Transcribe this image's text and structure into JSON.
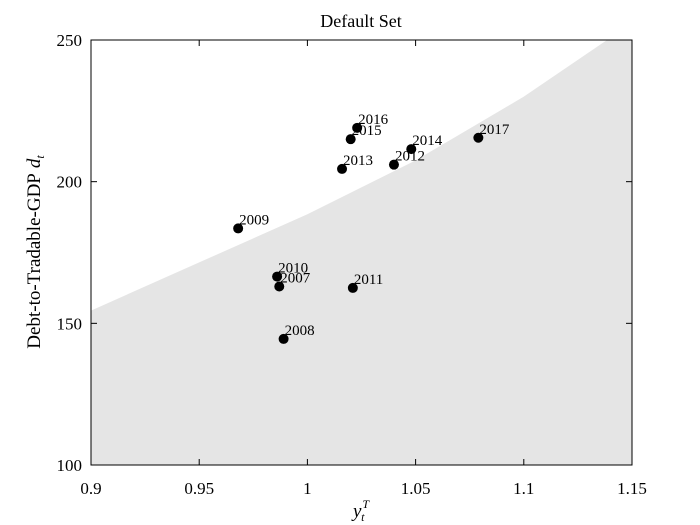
{
  "chart_data": {
    "type": "scatter",
    "title": "Default Set",
    "xlabel": "y",
    "xlabel_sub": "t",
    "xlabel_sup": "T",
    "ylabel": "Debt-to-Tradable-GDP",
    "ylabel_var": "d",
    "ylabel_sub": "t",
    "xlim": [
      0.9,
      1.15
    ],
    "ylim": [
      100,
      250
    ],
    "x_ticks": [
      0.9,
      0.95,
      1.0,
      1.05,
      1.1,
      1.15
    ],
    "x_tick_labels": [
      "0.9",
      "0.95",
      "1",
      "1.05",
      "1.1",
      "1.15"
    ],
    "y_ticks": [
      100,
      150,
      200,
      250
    ],
    "y_tick_labels": [
      "100",
      "150",
      "200",
      "250"
    ],
    "grid": false,
    "legend": "none",
    "default_region": {
      "description": "shaded region below boundary",
      "color": "#e5e5e5",
      "boundary_x": [
        0.9,
        0.95,
        1.0,
        1.05,
        1.1,
        1.15
      ],
      "boundary_y": [
        154.5,
        171.5,
        188.5,
        207.5,
        230.0,
        256.0
      ]
    },
    "points": [
      {
        "label": "2007",
        "x": 0.987,
        "y": 163.0
      },
      {
        "label": "2008",
        "x": 0.989,
        "y": 144.5
      },
      {
        "label": "2009",
        "x": 0.968,
        "y": 183.5
      },
      {
        "label": "2010",
        "x": 0.986,
        "y": 166.5
      },
      {
        "label": "2011",
        "x": 1.021,
        "y": 162.5
      },
      {
        "label": "2012",
        "x": 1.04,
        "y": 206.0
      },
      {
        "label": "2013",
        "x": 1.016,
        "y": 204.5
      },
      {
        "label": "2014",
        "x": 1.048,
        "y": 211.5
      },
      {
        "label": "2015",
        "x": 1.02,
        "y": 215.0
      },
      {
        "label": "2016",
        "x": 1.023,
        "y": 219.0
      },
      {
        "label": "2017",
        "x": 1.079,
        "y": 215.5
      }
    ]
  }
}
